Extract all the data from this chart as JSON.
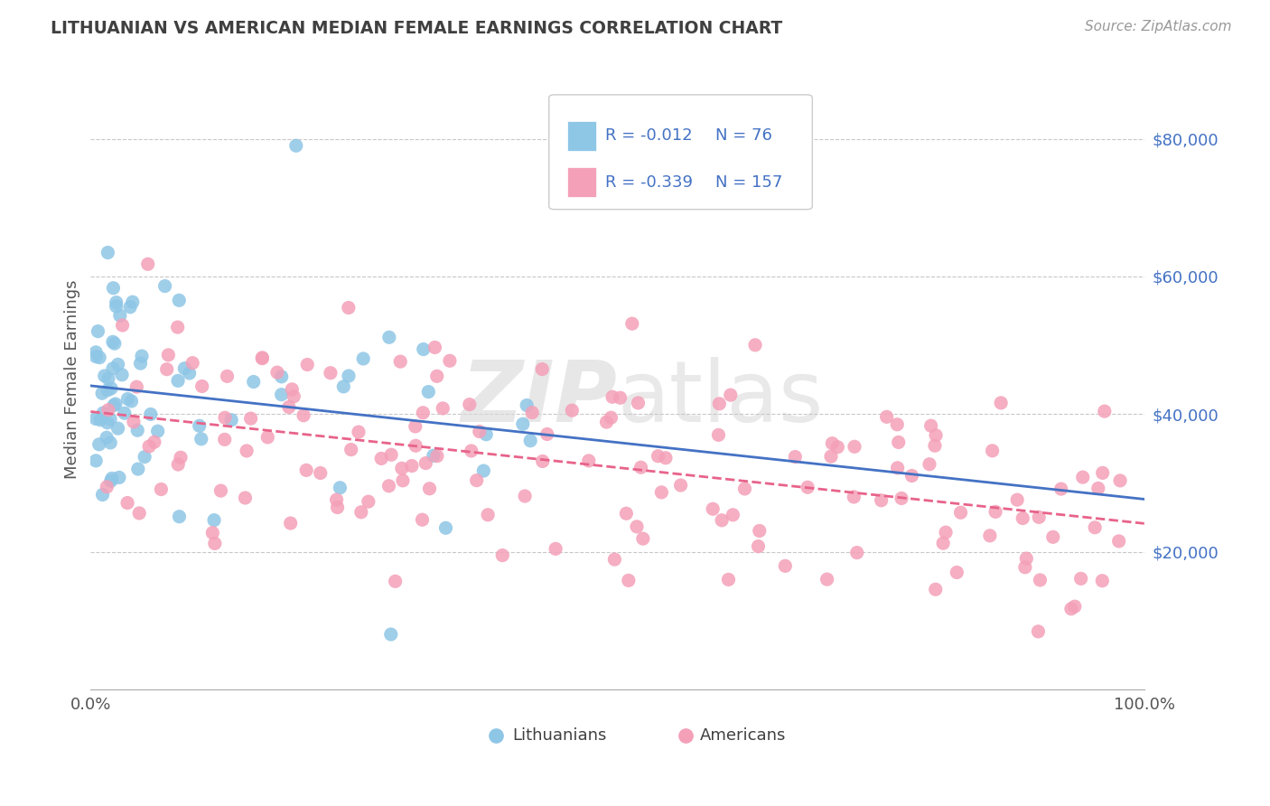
{
  "title": "LITHUANIAN VS AMERICAN MEDIAN FEMALE EARNINGS CORRELATION CHART",
  "source": "Source: ZipAtlas.com",
  "ylabel": "Median Female Earnings",
  "y_range": [
    0,
    90000
  ],
  "x_range": [
    0.0,
    1.0
  ],
  "legend_r1": "-0.012",
  "legend_n1": "76",
  "legend_r2": "-0.339",
  "legend_n2": "157",
  "color_blue": "#8ec6e6",
  "color_blue_line": "#4472c4",
  "color_pink": "#f4a0b8",
  "color_pink_line": "#e8638a",
  "color_axis_label": "#4472c4",
  "color_title": "#404040",
  "background_color": "#ffffff",
  "grid_color": "#c8c8c8"
}
